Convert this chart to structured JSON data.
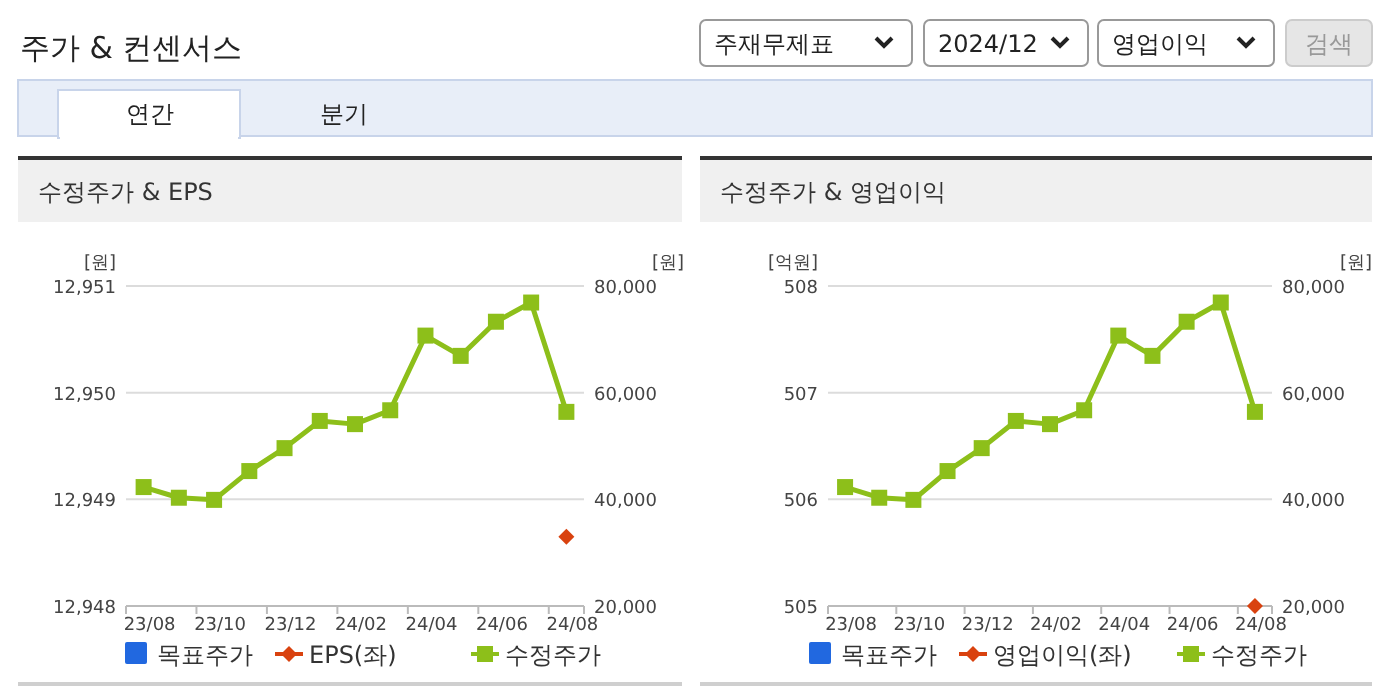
{
  "chart_data": [
    {
      "type": "other",
      "title": "주가 & 컨센서스",
      "annotations": [
        "주재무제표",
        "2024/12",
        "영업이익",
        "검색",
        "연간",
        "분기"
      ]
    },
    {
      "type": "line",
      "title": "수정주가 & EPS",
      "ylabel": "[원]",
      "y2label": "[원]",
      "categories": [
        "23/08",
        null,
        "23/10",
        null,
        "23/12",
        null,
        "24/02",
        null,
        "24/04",
        null,
        "24/06",
        null,
        "24/08"
      ],
      "ylim": [
        12948,
        12951
      ],
      "yticks": [
        {
          "value": 12948,
          "label": "12,948"
        },
        {
          "value": 12949,
          "label": "12,949"
        },
        {
          "value": 12950,
          "label": "12,950"
        },
        {
          "value": 12951,
          "label": "12,951"
        }
      ],
      "y2lim": [
        20000,
        80000
      ],
      "y2ticks": [
        {
          "value": 20000,
          "label": "20,000"
        },
        {
          "value": 40000,
          "label": "40,000"
        },
        {
          "value": 60000,
          "label": "60,000"
        },
        {
          "value": 80000,
          "label": "80,000"
        }
      ],
      "grid": "y",
      "legend": "bottom",
      "series": [
        {
          "name": "목표주가",
          "color": "#2168e0",
          "marker": "square",
          "values": [
            null,
            null,
            null,
            null,
            null,
            null,
            null,
            null,
            null,
            null,
            null,
            null,
            null
          ]
        },
        {
          "name": "EPS(좌)",
          "color": "#d9420f",
          "marker": "diamond",
          "values": [
            null,
            null,
            null,
            null,
            null,
            null,
            null,
            null,
            null,
            null,
            null,
            null,
            12948.65
          ]
        },
        {
          "name": "수정주가",
          "color": "#8dbf1a",
          "marker": "square",
          "axis": "y2",
          "values": [
            42300,
            40300,
            39900,
            45300,
            49600,
            54700,
            54100,
            56700,
            70700,
            66900,
            73300,
            76900,
            56400
          ]
        }
      ]
    },
    {
      "type": "line",
      "title": "수정주가 & 영업이익",
      "ylabel": "[억원]",
      "y2label": "[원]",
      "categories": [
        "23/08",
        null,
        "23/10",
        null,
        "23/12",
        null,
        "24/02",
        null,
        "24/04",
        null,
        "24/06",
        null,
        "24/08"
      ],
      "ylim": [
        505,
        508
      ],
      "yticks": [
        505,
        506,
        507,
        508
      ],
      "y2lim": [
        20000,
        80000
      ],
      "y2ticks": [
        {
          "value": 20000,
          "label": "20,000"
        },
        {
          "value": 40000,
          "label": "40,000"
        },
        {
          "value": 60000,
          "label": "60,000"
        },
        {
          "value": 80000,
          "label": "80,000"
        }
      ],
      "grid": "y",
      "legend": "bottom",
      "series": [
        {
          "name": "목표주가",
          "color": "#2168e0",
          "marker": "square",
          "values": [
            null,
            null,
            null,
            null,
            null,
            null,
            null,
            null,
            null,
            null,
            null,
            null,
            null
          ]
        },
        {
          "name": "영업이익(좌)",
          "color": "#d9420f",
          "marker": "diamond",
          "values": [
            null,
            null,
            null,
            null,
            null,
            null,
            null,
            null,
            null,
            null,
            null,
            null,
            505
          ]
        },
        {
          "name": "수정주가",
          "color": "#8dbf1a",
          "marker": "square",
          "axis": "y2",
          "values": [
            42300,
            40300,
            39900,
            45300,
            49600,
            54700,
            54100,
            56700,
            70700,
            66900,
            73300,
            76900,
            56400
          ]
        }
      ]
    }
  ]
}
